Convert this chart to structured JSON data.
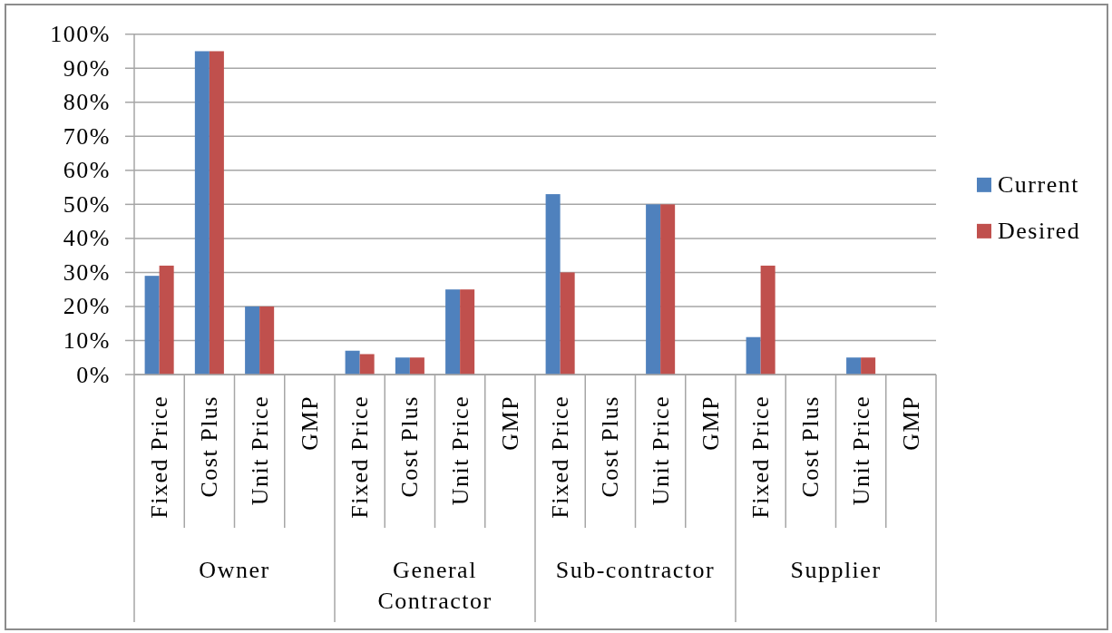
{
  "chart_data": {
    "type": "bar",
    "categories": [
      "Fixed Price",
      "Cost Plus",
      "Unit Price",
      "GMP",
      "Fixed Price",
      "Cost Plus",
      "Unit Price",
      "GMP",
      "Fixed Price",
      "Cost Plus",
      "Unit Price",
      "GMP",
      "Fixed Price",
      "Cost Plus",
      "Unit Price",
      "GMP"
    ],
    "series": [
      {
        "name": "Current",
        "color": "#4f81bd",
        "values": [
          29,
          95,
          20,
          null,
          7,
          5,
          25,
          null,
          53,
          null,
          50,
          null,
          11,
          null,
          5,
          null
        ]
      },
      {
        "name": "Desired",
        "color": "#c0504d",
        "values": [
          32,
          95,
          20,
          null,
          6,
          5,
          25,
          null,
          30,
          null,
          50,
          null,
          32,
          null,
          5,
          null
        ]
      }
    ],
    "annotations": [
      "Owner",
      "General Contractor",
      "Sub-contractor",
      "Supplier"
    ],
    "ylim": [
      0,
      100
    ],
    "yticks": [
      {
        "value": 0,
        "label": "0%"
      },
      {
        "value": 10,
        "label": "10%"
      },
      {
        "value": 20,
        "label": "20%"
      },
      {
        "value": 30,
        "label": "30%"
      },
      {
        "value": 40,
        "label": "40%"
      },
      {
        "value": 50,
        "label": "50%"
      },
      {
        "value": 60,
        "label": "60%"
      },
      {
        "value": 70,
        "label": "70%"
      },
      {
        "value": 80,
        "label": "80%"
      },
      {
        "value": 90,
        "label": "90%"
      },
      {
        "value": 100,
        "label": "100%"
      }
    ],
    "grid": "y",
    "legend": "right"
  }
}
